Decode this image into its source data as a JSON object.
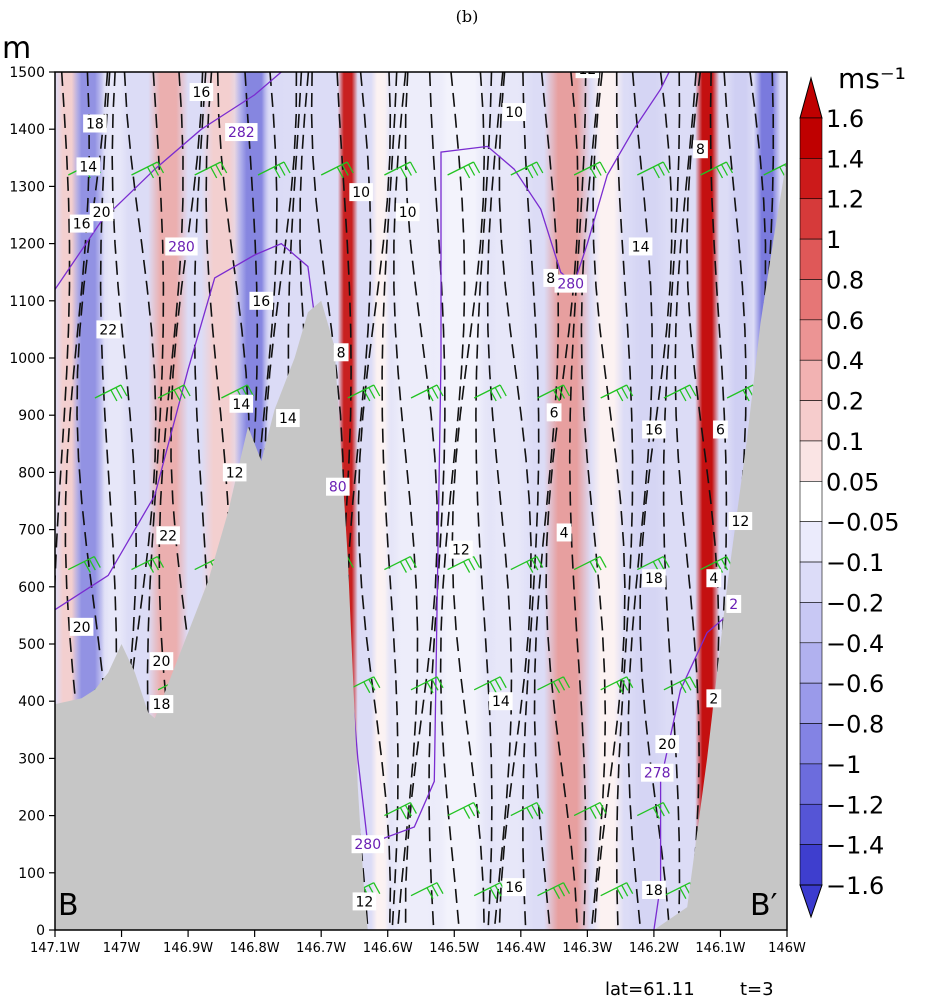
{
  "chart_data": {
    "type": "heatmap",
    "title": "(b)",
    "ylabel": "m",
    "colorbar_unit": "ms⁻¹",
    "x_ticks": [
      "147.1W",
      "147W",
      "146.9W",
      "146.8W",
      "146.7W",
      "146.6W",
      "146.5W",
      "146.4W",
      "146.3W",
      "146.2W",
      "146.1W",
      "146W"
    ],
    "x_range": [
      -147.1,
      -146.0
    ],
    "y_ticks": [
      "0",
      "100",
      "200",
      "300",
      "400",
      "500",
      "600",
      "700",
      "800",
      "900",
      "1000",
      "1100",
      "1200",
      "1300",
      "1400",
      "1500"
    ],
    "ylim": [
      0,
      1500
    ],
    "colorbar_levels": [
      "1.6",
      "1.4",
      "1.2",
      "1",
      "0.8",
      "0.6",
      "0.4",
      "0.2",
      "0.1",
      "0.05",
      "−0.05",
      "−0.1",
      "−0.2",
      "−0.4",
      "−0.6",
      "−0.8",
      "−1",
      "−1.2",
      "−1.4",
      "−1.6"
    ],
    "colorbar_colors": [
      "#bf0000",
      "#cc1a1a",
      "#d63a3a",
      "#df5858",
      "#e67676",
      "#ec9494",
      "#f2b2b2",
      "#f6cccc",
      "#fae4e4",
      "#ffffff",
      "#ebebfc",
      "#dcdcf8",
      "#c8c8f4",
      "#b1b1ef",
      "#9a9aea",
      "#8383e4",
      "#6c6cdd",
      "#5555d6",
      "#3e3ece"
    ],
    "terrain": [
      [
        -147.1,
        395
      ],
      [
        -147.08,
        400
      ],
      [
        -147.06,
        405
      ],
      [
        -147.04,
        420
      ],
      [
        -147.02,
        450
      ],
      [
        -147.0,
        500
      ],
      [
        -146.98,
        450
      ],
      [
        -146.96,
        380
      ],
      [
        -146.95,
        370
      ],
      [
        -146.93,
        430
      ],
      [
        -146.9,
        520
      ],
      [
        -146.87,
        610
      ],
      [
        -146.84,
        730
      ],
      [
        -146.81,
        880
      ],
      [
        -146.79,
        820
      ],
      [
        -146.77,
        910
      ],
      [
        -146.74,
        1000
      ],
      [
        -146.72,
        1080
      ],
      [
        -146.7,
        1100
      ],
      [
        -146.68,
        1020
      ],
      [
        -146.66,
        650
      ],
      [
        -146.645,
        250
      ],
      [
        -146.635,
        60
      ],
      [
        -146.63,
        0
      ],
      [
        -146.2,
        0
      ],
      [
        -146.15,
        40
      ],
      [
        -146.12,
        300
      ],
      [
        -146.09,
        600
      ],
      [
        -146.06,
        860
      ],
      [
        -146.04,
        1060
      ],
      [
        -146.02,
        1210
      ],
      [
        -146.0,
        1350
      ],
      [
        -146.0,
        0
      ]
    ],
    "wind_anomaly_bands": [
      {
        "x": -147.08,
        "w": 0.02,
        "v": 0.3
      },
      {
        "x": -147.05,
        "w": 0.025,
        "v": -0.9
      },
      {
        "x": -147.01,
        "w": 0.02,
        "v": -0.2
      },
      {
        "x": -146.93,
        "w": 0.03,
        "v": 0.5
      },
      {
        "x": -146.85,
        "w": 0.03,
        "v": 0.3
      },
      {
        "x": -146.8,
        "w": 0.03,
        "v": -1.0
      },
      {
        "x": -146.77,
        "w": 0.02,
        "v": -0.3
      },
      {
        "x": -146.66,
        "w": 0.015,
        "v": 1.4
      },
      {
        "x": -146.61,
        "w": 0.015,
        "v": 0.08
      },
      {
        "x": -146.56,
        "w": 0.05,
        "v": -0.15
      },
      {
        "x": -146.49,
        "w": 0.05,
        "v": -0.1
      },
      {
        "x": -146.42,
        "w": 0.04,
        "v": -0.2
      },
      {
        "x": -146.33,
        "w": 0.035,
        "v": 0.6
      },
      {
        "x": -146.27,
        "w": 0.025,
        "v": 0.08
      },
      {
        "x": -146.21,
        "w": 0.03,
        "v": -0.35
      },
      {
        "x": -146.12,
        "w": 0.018,
        "v": 1.5
      },
      {
        "x": -146.07,
        "w": 0.02,
        "v": -0.4
      },
      {
        "x": -146.03,
        "w": 0.02,
        "v": -1.1
      }
    ],
    "isotach_labels": [
      {
        "text": "16",
        "x": -146.88,
        "y": 1465
      },
      {
        "text": "18",
        "x": -147.04,
        "y": 1410
      },
      {
        "text": "14",
        "x": -147.05,
        "y": 1335
      },
      {
        "text": "20",
        "x": -147.03,
        "y": 1255
      },
      {
        "text": "16",
        "x": -147.06,
        "y": 1235
      },
      {
        "text": "22",
        "x": -147.02,
        "y": 1050
      },
      {
        "text": "16",
        "x": -146.79,
        "y": 1100
      },
      {
        "text": "14",
        "x": -146.82,
        "y": 920
      },
      {
        "text": "14",
        "x": -146.75,
        "y": 895
      },
      {
        "text": "12",
        "x": -146.83,
        "y": 800
      },
      {
        "text": "22",
        "x": -146.93,
        "y": 690
      },
      {
        "text": "20",
        "x": -147.06,
        "y": 530
      },
      {
        "text": "20",
        "x": -146.94,
        "y": 470
      },
      {
        "text": "18",
        "x": -146.94,
        "y": 395
      },
      {
        "text": "8",
        "x": -146.67,
        "y": 1010
      },
      {
        "text": "10",
        "x": -146.64,
        "y": 1290
      },
      {
        "text": "10",
        "x": -146.57,
        "y": 1255
      },
      {
        "text": "10",
        "x": -146.41,
        "y": 1430
      },
      {
        "text": "12",
        "x": -146.3,
        "y": 1505
      },
      {
        "text": "8",
        "x": -146.355,
        "y": 1140
      },
      {
        "text": "14",
        "x": -146.22,
        "y": 1195
      },
      {
        "text": "8",
        "x": -146.13,
        "y": 1365
      },
      {
        "text": "6",
        "x": -146.35,
        "y": 905
      },
      {
        "text": "16",
        "x": -146.2,
        "y": 875
      },
      {
        "text": "6",
        "x": -146.1,
        "y": 875
      },
      {
        "text": "12",
        "x": -146.49,
        "y": 665
      },
      {
        "text": "4",
        "x": -146.335,
        "y": 695
      },
      {
        "text": "12",
        "x": -146.07,
        "y": 715
      },
      {
        "text": "18",
        "x": -146.2,
        "y": 615
      },
      {
        "text": "4",
        "x": -146.11,
        "y": 615
      },
      {
        "text": "14",
        "x": -146.43,
        "y": 400
      },
      {
        "text": "2",
        "x": -146.11,
        "y": 405
      },
      {
        "text": "20",
        "x": -146.18,
        "y": 325
      },
      {
        "text": "16",
        "x": -146.41,
        "y": 75
      },
      {
        "text": "18",
        "x": -146.2,
        "y": 70
      },
      {
        "text": "12",
        "x": -146.635,
        "y": 50
      }
    ],
    "theta_labels": [
      {
        "text": "282",
        "x": -146.82,
        "y": 1395
      },
      {
        "text": "280",
        "x": -146.91,
        "y": 1195
      },
      {
        "text": "280",
        "x": -146.165,
        "y": 1545
      },
      {
        "text": "280",
        "x": -146.325,
        "y": 1130
      },
      {
        "text": "80",
        "x": -146.675,
        "y": 775
      },
      {
        "text": "280",
        "x": -146.63,
        "y": 150
      },
      {
        "text": "278",
        "x": -146.195,
        "y": 275
      },
      {
        "text": "2",
        "x": -146.08,
        "y": 570
      }
    ],
    "corner_labels": {
      "left": "B",
      "right": "B′"
    },
    "footer": {
      "lat": "lat=61.11",
      "t": "t=3"
    }
  }
}
